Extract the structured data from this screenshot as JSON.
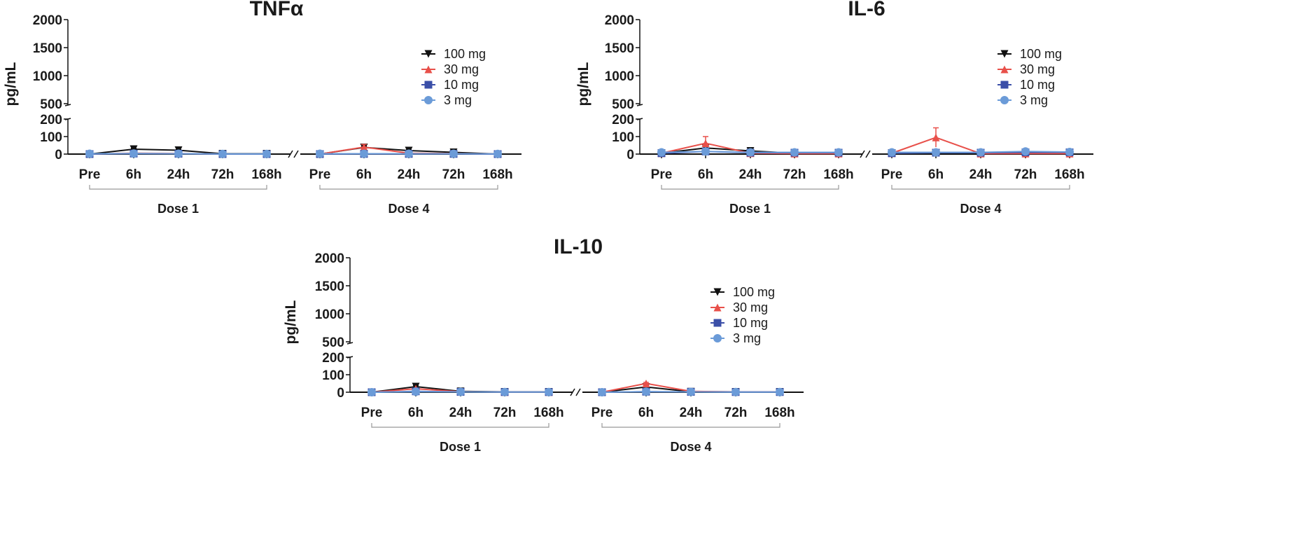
{
  "chart_data": [
    {
      "type": "line",
      "title": "TNFα",
      "ylabel": "pg/mL",
      "yticks": [
        "0",
        "100",
        "200",
        "500",
        "1000",
        "1500",
        "2000"
      ],
      "ylim": [
        0,
        2000
      ],
      "y_axis_break": [
        200,
        500
      ],
      "x": [
        "Pre",
        "6h",
        "24h",
        "72h",
        "168h",
        "Pre",
        "6h",
        "24h",
        "72h",
        "168h"
      ],
      "groups": [
        "Dose 1",
        "Dose 4"
      ],
      "legend_position": "top-right",
      "series": [
        {
          "name": "100 mg",
          "color": "#111111",
          "marker": "triangle-down",
          "values": [
            0,
            28,
            22,
            2,
            2,
            0,
            38,
            20,
            10,
            0
          ],
          "errors": [
            0,
            5,
            4,
            0,
            0,
            0,
            6,
            4,
            2,
            0
          ]
        },
        {
          "name": "30 mg",
          "color": "#e8504a",
          "marker": "triangle-up",
          "values": [
            0,
            5,
            3,
            0,
            0,
            0,
            40,
            5,
            3,
            0
          ],
          "errors": [
            0,
            0,
            0,
            0,
            0,
            0,
            15,
            0,
            0,
            0
          ]
        },
        {
          "name": "10 mg",
          "color": "#3b4fa8",
          "marker": "square",
          "values": [
            0,
            3,
            2,
            0,
            0,
            0,
            1,
            1,
            1,
            0
          ],
          "errors": [
            0,
            0,
            0,
            0,
            0,
            0,
            0,
            0,
            0,
            0
          ]
        },
        {
          "name": "3 mg",
          "color": "#6b9bd8",
          "marker": "circle",
          "values": [
            2,
            3,
            2,
            1,
            1,
            2,
            2,
            2,
            2,
            1
          ],
          "errors": [
            0,
            0,
            0,
            0,
            0,
            0,
            0,
            0,
            0,
            0
          ]
        }
      ]
    },
    {
      "type": "line",
      "title": "IL-6",
      "ylabel": "pg/mL",
      "yticks": [
        "0",
        "100",
        "200",
        "500",
        "1000",
        "1500",
        "2000"
      ],
      "ylim": [
        0,
        2000
      ],
      "y_axis_break": [
        200,
        500
      ],
      "x": [
        "Pre",
        "6h",
        "24h",
        "72h",
        "168h",
        "Pre",
        "6h",
        "24h",
        "72h",
        "168h"
      ],
      "groups": [
        "Dose 1",
        "Dose 4"
      ],
      "legend_position": "top-right",
      "series": [
        {
          "name": "100 mg",
          "color": "#111111",
          "marker": "triangle-down",
          "values": [
            5,
            35,
            18,
            5,
            5,
            5,
            5,
            5,
            5,
            5
          ],
          "errors": [
            0,
            8,
            5,
            0,
            0,
            0,
            0,
            0,
            0,
            0
          ]
        },
        {
          "name": "30 mg",
          "color": "#e8504a",
          "marker": "triangle-up",
          "values": [
            5,
            62,
            5,
            3,
            3,
            5,
            95,
            3,
            3,
            3
          ],
          "errors": [
            0,
            38,
            0,
            0,
            0,
            0,
            55,
            0,
            0,
            0
          ]
        },
        {
          "name": "10 mg",
          "color": "#3b4fa8",
          "marker": "square",
          "values": [
            5,
            15,
            8,
            8,
            8,
            5,
            8,
            8,
            10,
            10
          ],
          "errors": [
            0,
            0,
            0,
            0,
            0,
            0,
            0,
            0,
            0,
            0
          ]
        },
        {
          "name": "3 mg",
          "color": "#6b9bd8",
          "marker": "circle",
          "values": [
            10,
            15,
            10,
            10,
            10,
            10,
            10,
            10,
            15,
            12
          ],
          "errors": [
            0,
            0,
            0,
            0,
            0,
            0,
            0,
            0,
            0,
            0
          ]
        }
      ]
    },
    {
      "type": "line",
      "title": "IL-10",
      "ylabel": "pg/mL",
      "yticks": [
        "0",
        "100",
        "200",
        "500",
        "1000",
        "1500",
        "2000"
      ],
      "ylim": [
        0,
        2000
      ],
      "y_axis_break": [
        200,
        500
      ],
      "x": [
        "Pre",
        "6h",
        "24h",
        "72h",
        "168h",
        "Pre",
        "6h",
        "24h",
        "72h",
        "168h"
      ],
      "groups": [
        "Dose 1",
        "Dose 4"
      ],
      "legend_position": "top-right",
      "series": [
        {
          "name": "100 mg",
          "color": "#111111",
          "marker": "triangle-down",
          "values": [
            0,
            32,
            5,
            2,
            2,
            0,
            30,
            3,
            2,
            2
          ],
          "errors": [
            0,
            6,
            0,
            0,
            0,
            0,
            5,
            0,
            0,
            0
          ]
        },
        {
          "name": "30 mg",
          "color": "#e8504a",
          "marker": "triangle-up",
          "values": [
            0,
            20,
            3,
            1,
            1,
            0,
            50,
            5,
            2,
            2
          ],
          "errors": [
            0,
            0,
            0,
            0,
            0,
            0,
            6,
            0,
            0,
            0
          ]
        },
        {
          "name": "10 mg",
          "color": "#3b4fa8",
          "marker": "square",
          "values": [
            0,
            5,
            2,
            1,
            1,
            0,
            3,
            2,
            1,
            1
          ],
          "errors": [
            0,
            0,
            0,
            0,
            0,
            0,
            0,
            0,
            0,
            0
          ]
        },
        {
          "name": "3 mg",
          "color": "#6b9bd8",
          "marker": "circle",
          "values": [
            0,
            3,
            2,
            1,
            1,
            0,
            3,
            2,
            1,
            1
          ],
          "errors": [
            0,
            0,
            0,
            0,
            0,
            0,
            0,
            0,
            0,
            0
          ]
        }
      ]
    }
  ]
}
